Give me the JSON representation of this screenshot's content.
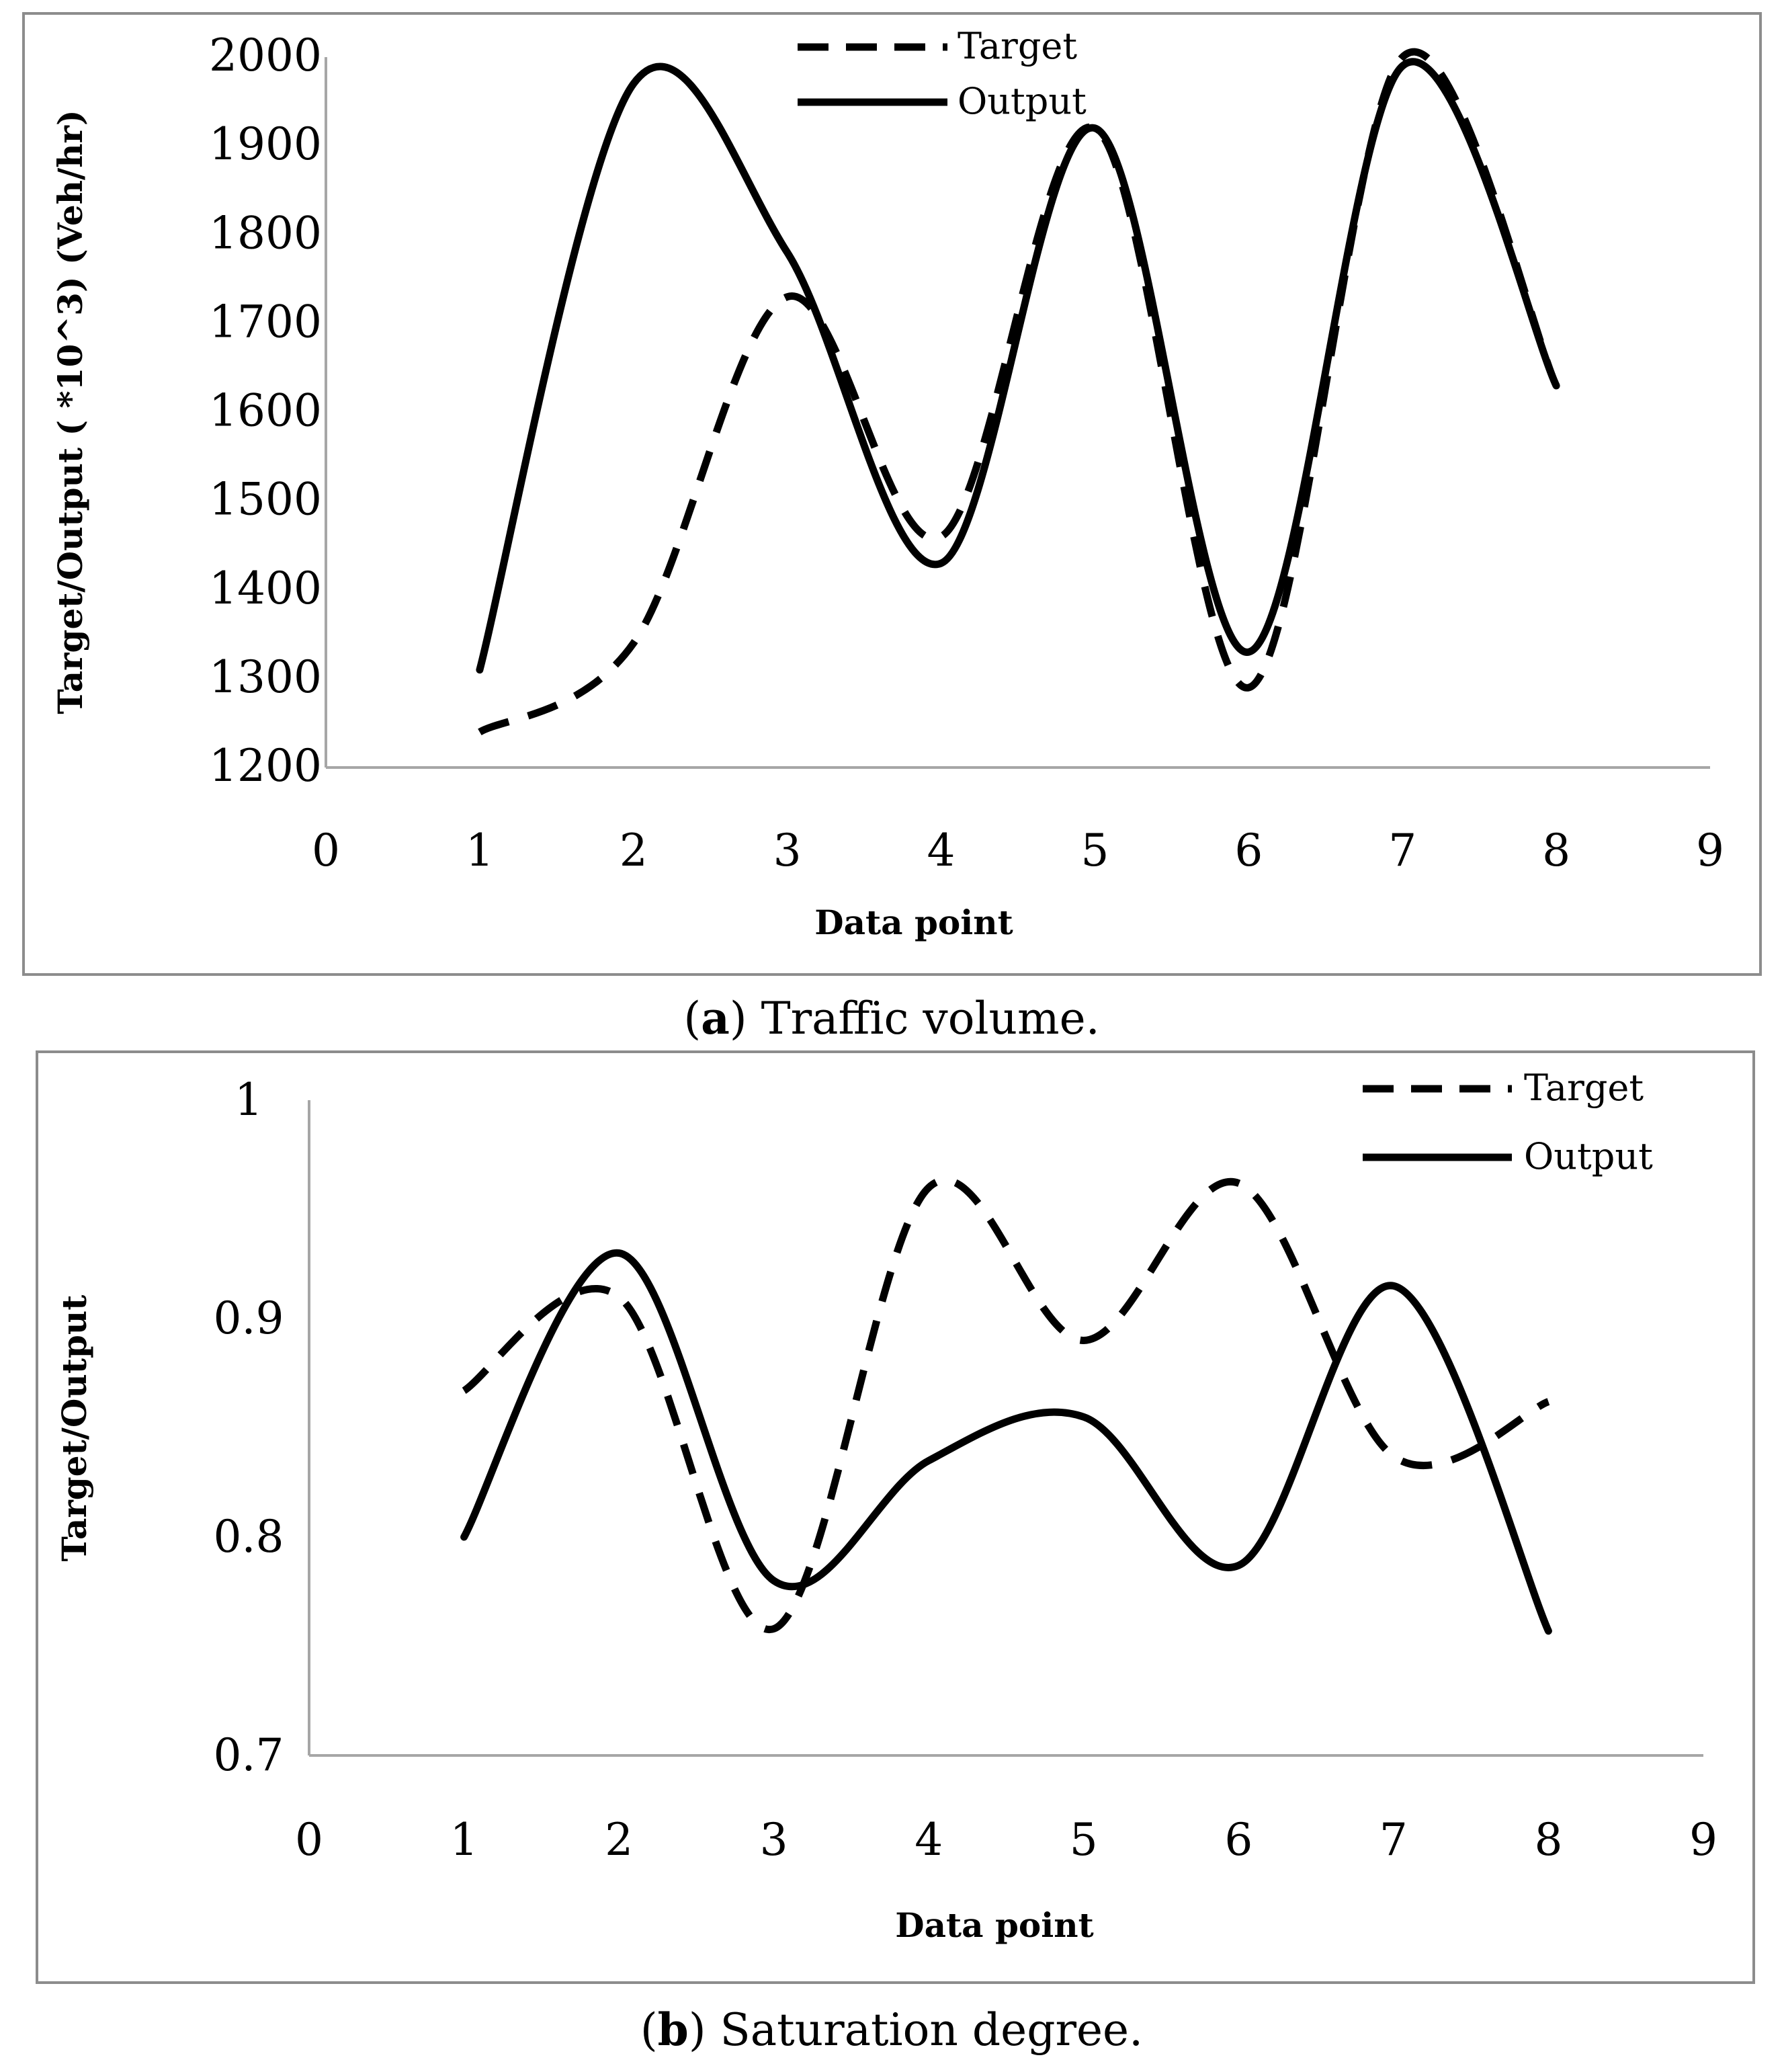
{
  "chart_data": [
    {
      "type": "line",
      "title": "",
      "caption": {
        "label": "a",
        "text": "Traffic volume."
      },
      "xlabel": "Data point",
      "ylabel": "Target/Output ( *10^3) (Veh/hr)",
      "xlim": [
        0,
        9
      ],
      "ylim": [
        1200,
        2000
      ],
      "xticks": [
        0,
        1,
        2,
        3,
        4,
        5,
        6,
        7,
        8,
        9
      ],
      "yticks": [
        1200,
        1300,
        1400,
        1500,
        1600,
        1700,
        1800,
        1900,
        2000
      ],
      "x": [
        1,
        2,
        3,
        4,
        5,
        6,
        7,
        8
      ],
      "series": [
        {
          "name": "Target",
          "style": "dashed",
          "values": [
            1240,
            1340,
            1730,
            1460,
            1920,
            1290,
            2000,
            1630
          ]
        },
        {
          "name": "Output",
          "style": "solid",
          "values": [
            1310,
            1970,
            1780,
            1430,
            1920,
            1330,
            1990,
            1630
          ]
        }
      ],
      "legend": "top-center",
      "grid": false
    },
    {
      "type": "line",
      "title": "",
      "caption": {
        "label": "b",
        "text": "Saturation degree."
      },
      "xlabel": "Data point",
      "ylabel": "Target/Output",
      "xlim": [
        0,
        9
      ],
      "ylim": [
        0.7,
        1.0
      ],
      "xticks": [
        0,
        1,
        2,
        3,
        4,
        5,
        6,
        7,
        8,
        9
      ],
      "yticks": [
        0.7,
        0.8,
        0.9,
        1.0
      ],
      "ytick_labels": [
        "0.7",
        "0.8",
        "0.9",
        "1"
      ],
      "x": [
        1,
        2,
        3,
        4,
        5,
        6,
        7,
        8
      ],
      "series": [
        {
          "name": "Target",
          "style": "dashed",
          "values": [
            0.867,
            0.91,
            0.758,
            0.96,
            0.89,
            0.962,
            0.837,
            0.862
          ]
        },
        {
          "name": "Output",
          "style": "solid",
          "values": [
            0.8,
            0.93,
            0.78,
            0.835,
            0.855,
            0.787,
            0.915,
            0.757
          ]
        }
      ],
      "legend": "top-right",
      "grid": false
    }
  ]
}
